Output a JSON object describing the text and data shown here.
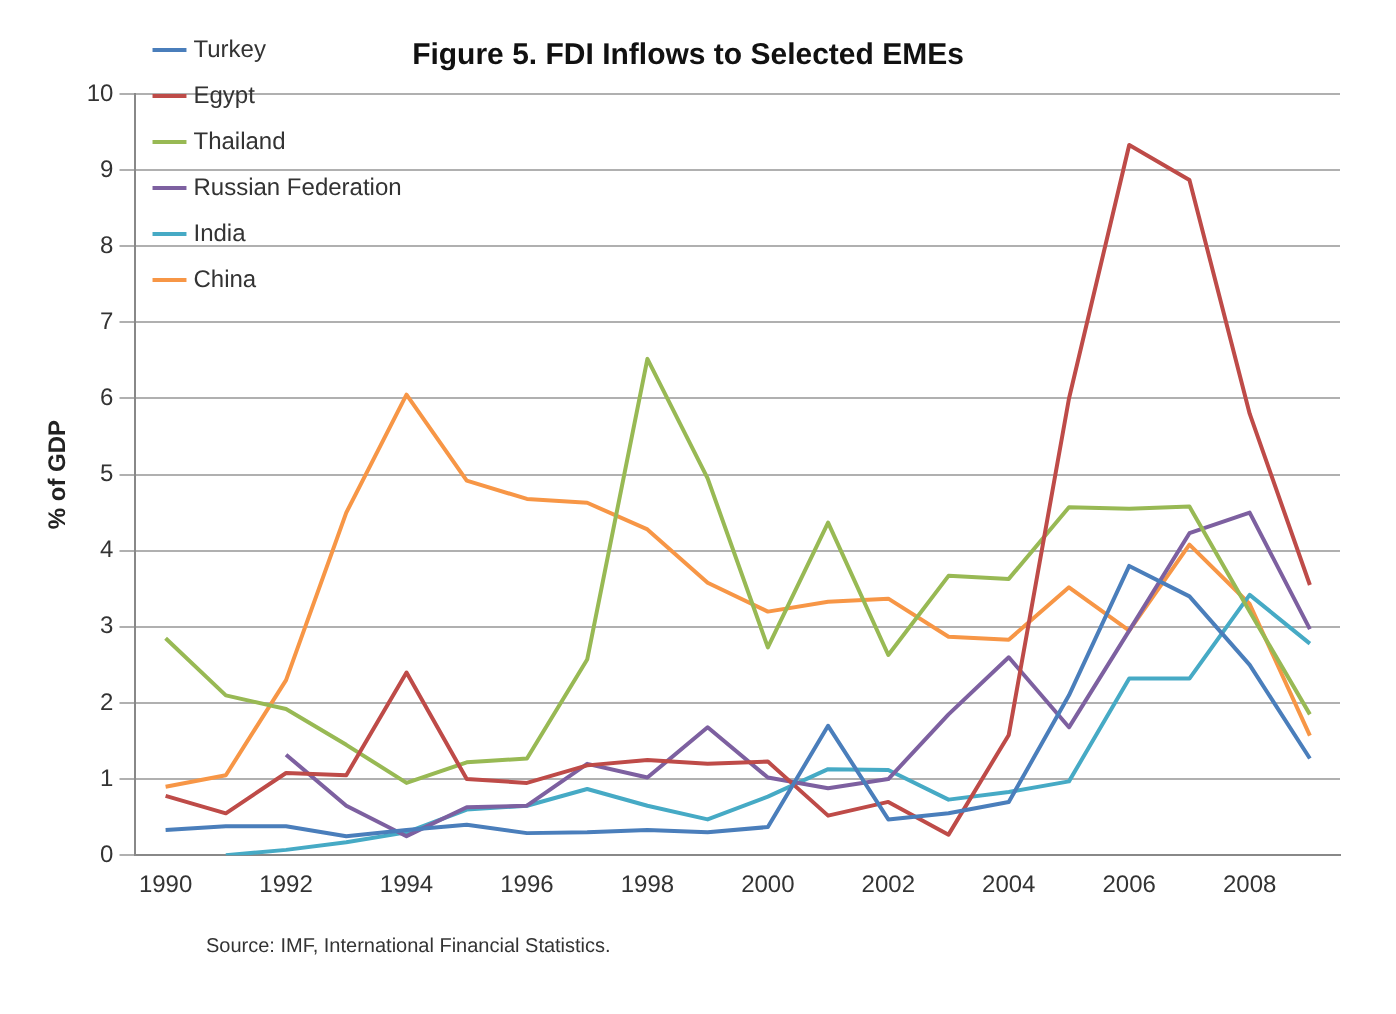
{
  "chart_data": {
    "type": "line",
    "title": "Figure 5. FDI Inflows to Selected EMEs",
    "ylabel": "% of GDP",
    "categories": [
      "1990",
      null,
      "1992",
      null,
      "1994",
      null,
      "1996",
      null,
      "1998",
      null,
      "2000",
      null,
      "2002",
      null,
      "2004",
      null,
      "2006",
      null,
      "2008",
      null
    ],
    "series": [
      {
        "name": "Turkey",
        "color": "#4a7ebb",
        "values": [
          0.33,
          0.38,
          0.38,
          0.25,
          0.33,
          0.4,
          0.29,
          0.3,
          0.33,
          0.3,
          0.37,
          1.7,
          0.47,
          0.55,
          0.7,
          2.1,
          3.8,
          3.4,
          2.5,
          1.27
        ]
      },
      {
        "name": "Egypt",
        "color": "#be4b48",
        "values": [
          0.78,
          0.55,
          1.08,
          1.05,
          2.4,
          1.0,
          0.95,
          1.18,
          1.25,
          1.2,
          1.23,
          0.52,
          0.7,
          0.27,
          1.58,
          6.0,
          9.33,
          8.87,
          5.8,
          3.55
        ]
      },
      {
        "name": "Thailand",
        "color": "#98b954",
        "values": [
          2.85,
          2.1,
          1.92,
          1.45,
          0.95,
          1.22,
          1.27,
          2.57,
          6.52,
          4.95,
          2.73,
          4.37,
          2.63,
          3.67,
          3.63,
          4.57,
          4.55,
          4.58,
          3.2,
          1.85
        ]
      },
      {
        "name": "Russian Federation",
        "color": "#7d60a0",
        "values": [
          null,
          null,
          1.32,
          0.65,
          0.25,
          0.63,
          0.65,
          1.2,
          1.02,
          1.68,
          1.02,
          0.88,
          1.0,
          1.85,
          2.6,
          1.68,
          2.95,
          4.23,
          4.5,
          2.97
        ]
      },
      {
        "name": "India",
        "color": "#46aac5",
        "values": [
          null,
          0.0,
          0.07,
          0.17,
          0.3,
          0.6,
          0.65,
          0.87,
          0.65,
          0.47,
          0.77,
          1.13,
          1.12,
          0.73,
          0.83,
          0.97,
          2.32,
          2.32,
          3.42,
          2.78
        ]
      },
      {
        "name": "China",
        "color": "#f79646",
        "values": [
          0.9,
          1.05,
          2.3,
          4.5,
          6.05,
          4.92,
          4.68,
          4.63,
          4.28,
          3.58,
          3.2,
          3.33,
          3.37,
          2.87,
          2.83,
          3.52,
          2.95,
          4.08,
          3.3,
          1.57
        ]
      }
    ],
    "ylim": [
      0,
      10
    ],
    "yticks": [
      0,
      1,
      2,
      3,
      4,
      5,
      6,
      7,
      8,
      9,
      10
    ],
    "grid": "y",
    "legend": "top left",
    "marker": "none",
    "line_style": "solid",
    "annotations": [
      "Source: IMF, International Financial Statistics."
    ]
  }
}
